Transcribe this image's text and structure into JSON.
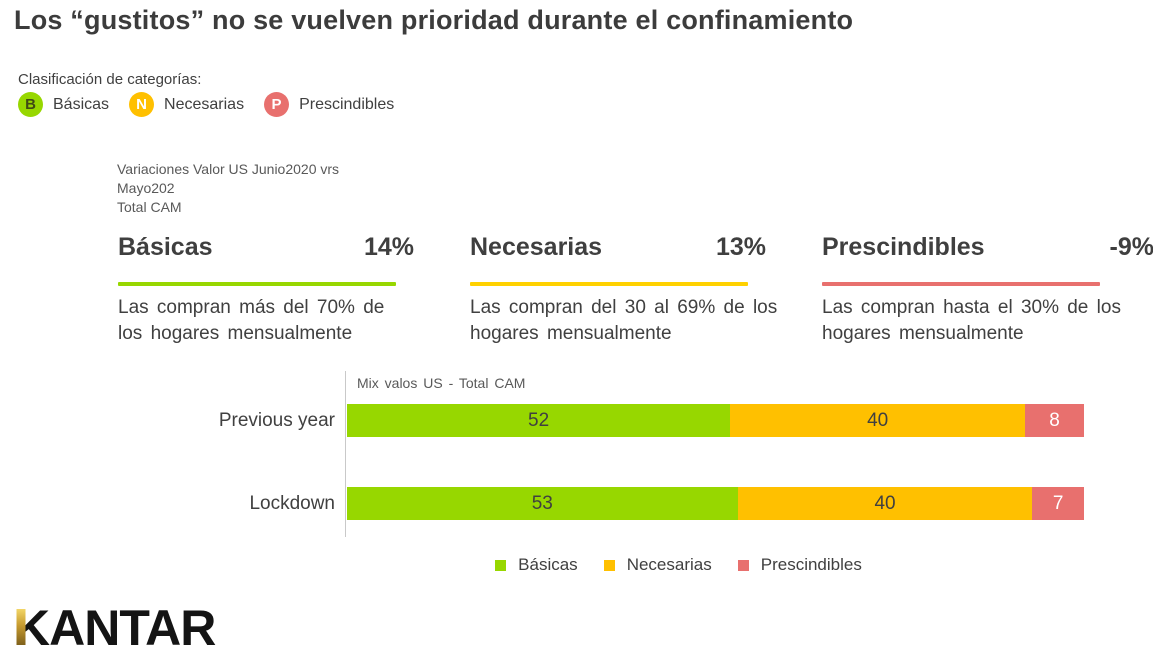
{
  "title": "Los “gustitos” no se vuelven prioridad durante el confinamiento",
  "classification": {
    "label": "Clasificación de categorías:",
    "items": [
      {
        "badge": "B",
        "label": "Básicas",
        "color": "#97D700",
        "badge_text_color": "#3F4A14"
      },
      {
        "badge": "N",
        "label": "Necesarias",
        "color": "#FFC000",
        "badge_text_color": "#FFFFFF"
      },
      {
        "badge": "P",
        "label": "Prescindibles",
        "color": "#E8706E",
        "badge_text_color": "#FFFFFF"
      }
    ]
  },
  "note": {
    "line1": "Variaciones Valor US Junio2020 vrs",
    "line2": "Mayo202",
    "line3": "Total CAM"
  },
  "categories": [
    {
      "name": "Básicas",
      "change": "14%",
      "underline_color": "#97D700",
      "desc_line1": "Las compran más del 70% de",
      "desc_line2": "los hogares mensualmente"
    },
    {
      "name": "Necesarias",
      "change": "13%",
      "underline_color": "#FFD100",
      "desc_line1": "Las compran del 30 al 69% de los",
      "desc_line2": "hogares mensualmente"
    },
    {
      "name": "Prescindibles",
      "change": "-9%",
      "underline_color": "#E8706E",
      "desc_line1": "Las compran hasta el 30% de los",
      "desc_line2": "hogares mensualmente"
    }
  ],
  "chart_data": {
    "type": "bar",
    "stacked": true,
    "orientation": "horizontal",
    "title": "Mix valos US  - Total CAM",
    "categories": [
      "Previous year",
      "Lockdown"
    ],
    "series": [
      {
        "name": "Básicas",
        "color": "#97D700",
        "values": [
          52,
          53
        ]
      },
      {
        "name": "Necesarias",
        "color": "#FFC000",
        "values": [
          40,
          40
        ]
      },
      {
        "name": "Prescindibles",
        "color": "#E8706E",
        "values": [
          8,
          7
        ]
      }
    ],
    "xlim": [
      0,
      100
    ],
    "value_labels": true,
    "grid": false,
    "legend_position": "bottom"
  },
  "logo": {
    "text": "KANTAR"
  }
}
